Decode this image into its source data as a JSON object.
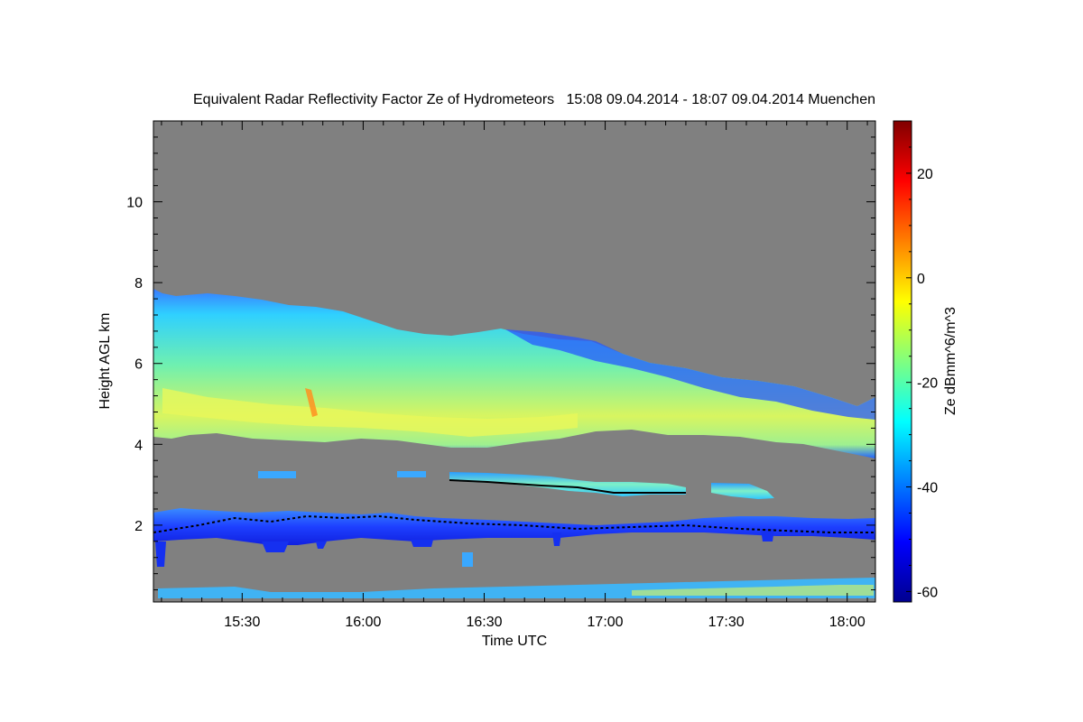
{
  "chart_data": {
    "type": "heatmap",
    "title": "Equivalent Radar Reflectivity Factor Ze of Hydrometeors   15:08 09.04.2014 - 18:07 09.04.2014 Muenchen",
    "xlabel": "Time UTC",
    "ylabel": "Height AGL km",
    "colorbar_label": "Ze dBmm^6/m^3",
    "x_ticks": [
      "15:30",
      "16:00",
      "16:30",
      "17:00",
      "17:30",
      "18:00"
    ],
    "x_tick_minutes": [
      930,
      960,
      990,
      1020,
      1050,
      1080
    ],
    "xlim_minutes": [
      908,
      1087
    ],
    "y_ticks": [
      "2",
      "4",
      "6",
      "8",
      "10"
    ],
    "y_tick_values": [
      2,
      4,
      6,
      8,
      10
    ],
    "ylim": [
      0.1,
      12
    ],
    "colorbar_ticks": [
      "20",
      "0",
      "-20",
      "-40",
      "-60"
    ],
    "colorbar_tick_values": [
      20,
      0,
      -20,
      -40,
      -60
    ],
    "colorbar_range": [
      -62,
      30
    ],
    "background_color": "#808080",
    "regions": [
      {
        "name": "main cloud layer",
        "start": "15:08",
        "end": "18:07",
        "base_km": [
          4.1,
          3.7
        ],
        "top_km": [
          7.8,
          5.1
        ],
        "ze_dbz": [
          -35,
          -5
        ]
      },
      {
        "name": "mid-level layer",
        "start": "16:22",
        "end": "17:43",
        "base_km": 2.7,
        "top_km": 3.3,
        "ze_dbz": [
          -40,
          -15
        ]
      },
      {
        "name": "low-level layer",
        "start": "15:08",
        "end": "18:07",
        "base_km": 1.6,
        "top_km": 2.5,
        "ze_dbz": [
          -55,
          -25
        ]
      },
      {
        "name": "near-surface clutter",
        "start": "15:08",
        "end": "18:07",
        "base_km": 0.2,
        "top_km": 0.6,
        "ze_dbz": [
          -45,
          -10
        ]
      }
    ]
  }
}
